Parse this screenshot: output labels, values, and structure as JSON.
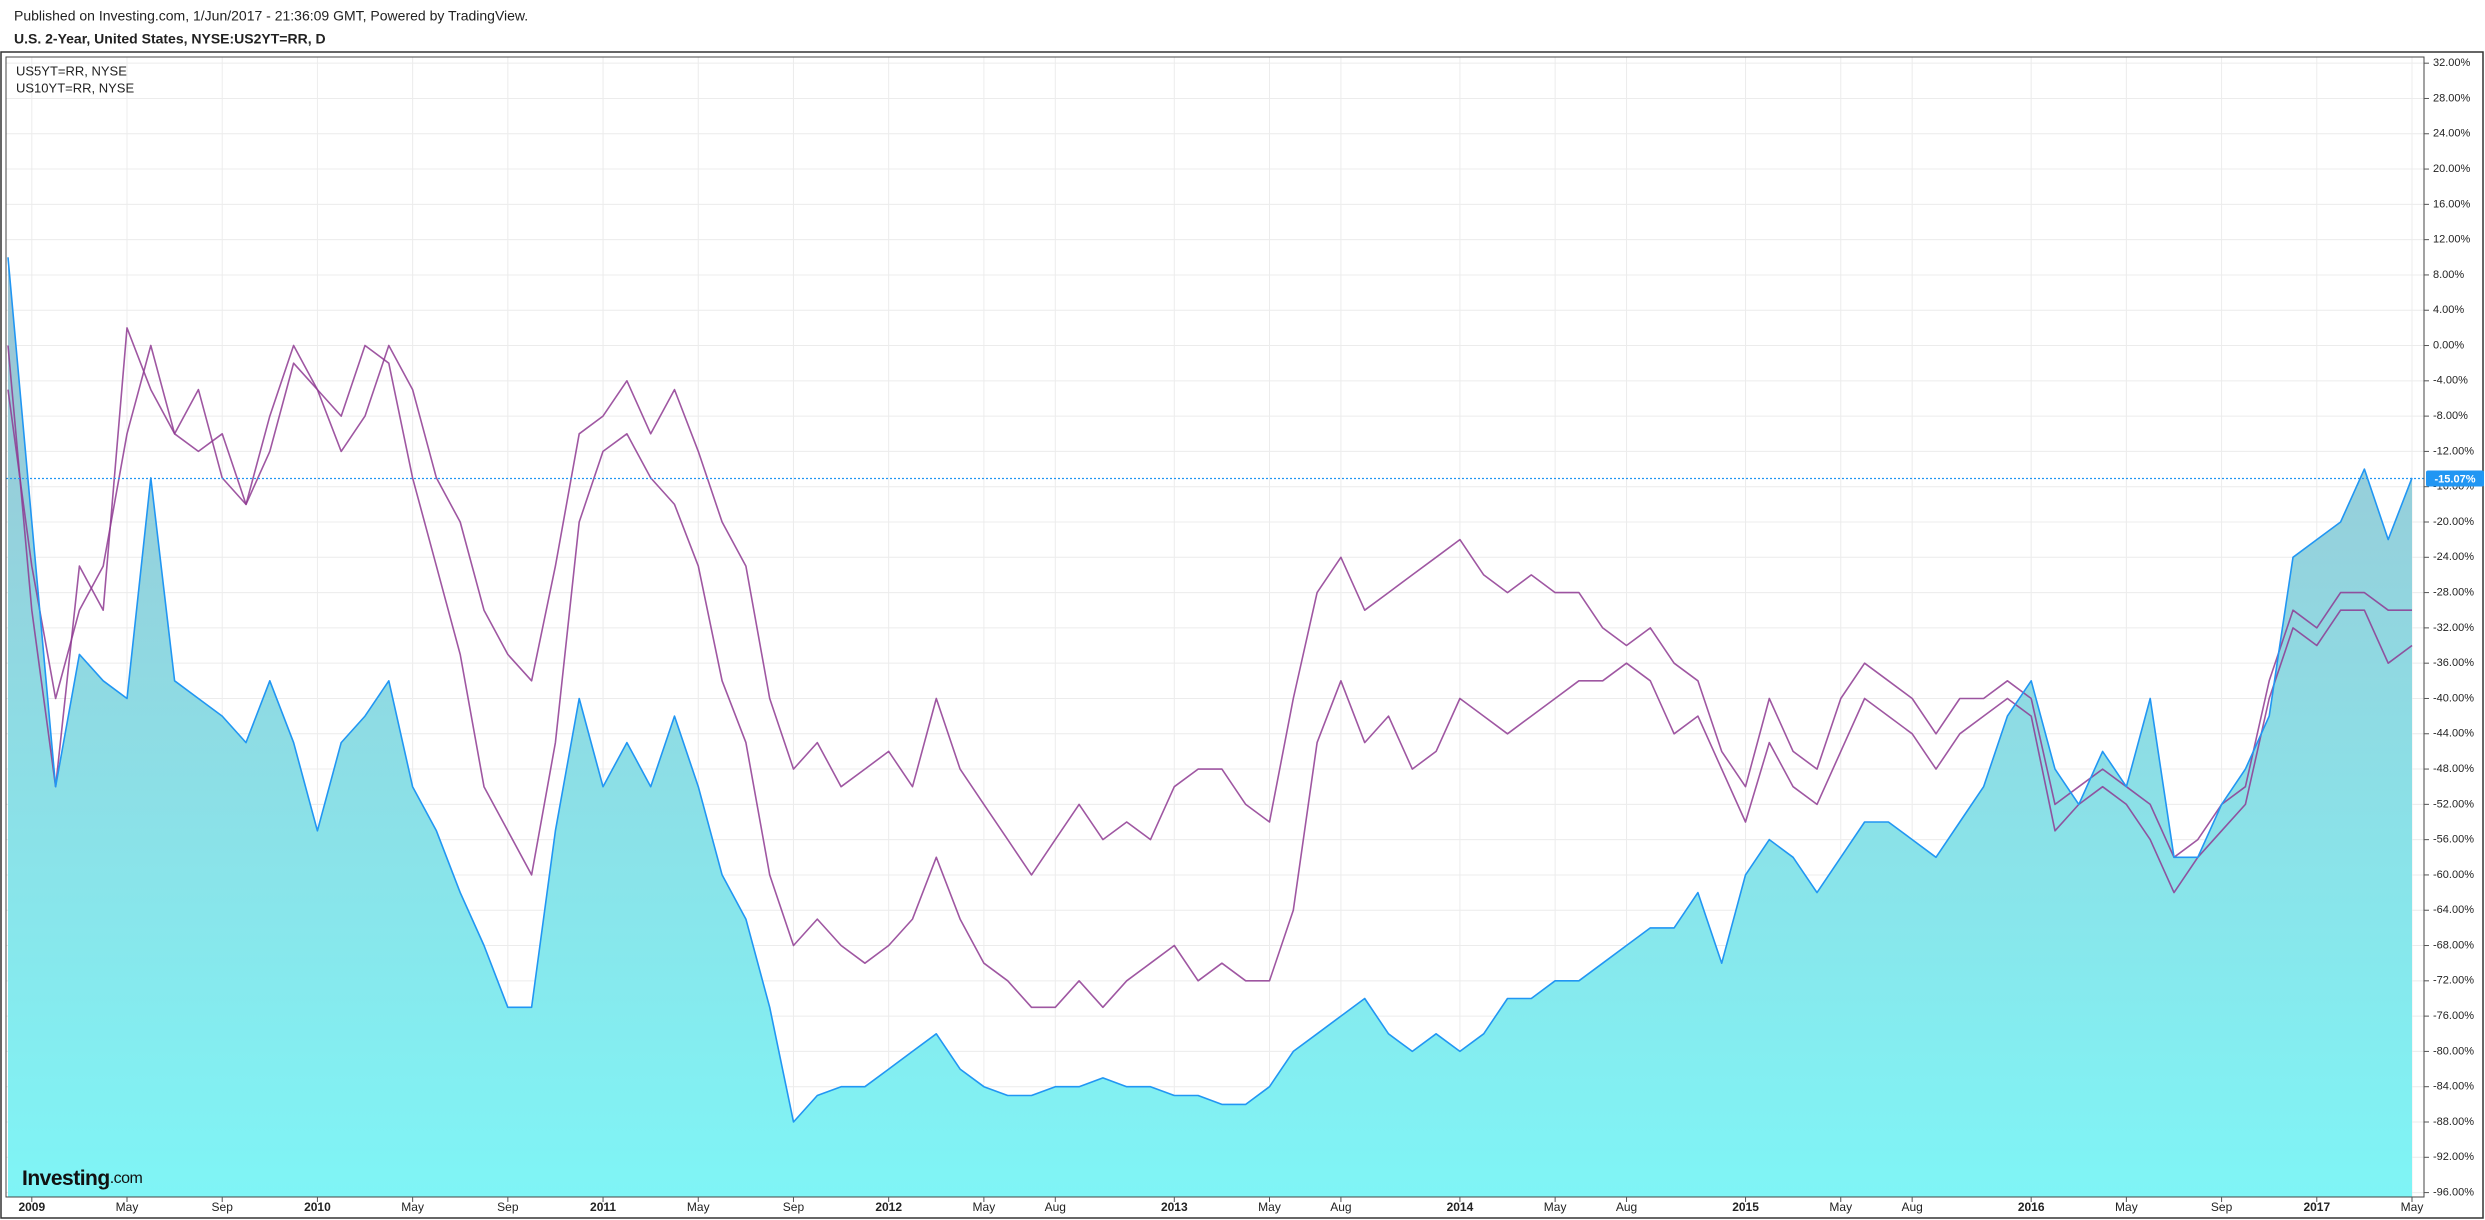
{
  "chart_data": {
    "type": "area",
    "published": "Published on Investing.com, 1/Jun/2017 - 21:36:09 GMT, Powered by TradingView.",
    "title": "U.S. 2-Year, United States, NYSE:US2YT=RR, D",
    "logo": {
      "main": "Investing",
      "suffix": ".com"
    },
    "grid": true,
    "legend": "top-left",
    "area_gradient": [
      "#9dc3d2",
      "#7ff5f6"
    ],
    "categories": [
      null,
      "2009",
      null,
      null,
      null,
      "May",
      null,
      null,
      null,
      "Sep",
      null,
      null,
      null,
      "2010",
      null,
      null,
      null,
      "May",
      null,
      null,
      null,
      "Sep",
      null,
      null,
      null,
      "2011",
      null,
      null,
      null,
      "May",
      null,
      null,
      null,
      "Sep",
      null,
      null,
      null,
      "2012",
      null,
      null,
      null,
      "May",
      null,
      null,
      "Aug",
      null,
      null,
      null,
      null,
      "2013",
      null,
      null,
      null,
      "May",
      null,
      null,
      "Aug",
      null,
      null,
      null,
      null,
      "2014",
      null,
      null,
      null,
      "May",
      null,
      null,
      "Aug",
      null,
      null,
      null,
      null,
      "2015",
      null,
      null,
      null,
      "May",
      null,
      null,
      "Aug",
      null,
      null,
      null,
      null,
      "2016",
      null,
      null,
      null,
      "May",
      null,
      null,
      null,
      "Sep",
      null,
      null,
      null,
      "2017",
      null,
      null,
      null,
      "May"
    ],
    "series": [
      {
        "color": "#2196f3",
        "values": [
          10,
          -20,
          -50,
          -35,
          -38,
          -40,
          -15,
          -38,
          -40,
          -42,
          -45,
          -38,
          -45,
          -55,
          -45,
          -42,
          -38,
          -50,
          -55,
          -62,
          -68,
          -75,
          -75,
          -55,
          -40,
          -50,
          -45,
          -50,
          -42,
          -50,
          -60,
          -65,
          -75,
          -88,
          -85,
          -84,
          -84,
          -82,
          -80,
          -78,
          -82,
          -84,
          -85,
          -85,
          -84,
          -84,
          -83,
          -84,
          -84,
          -85,
          -85,
          -86,
          -86,
          -84,
          -80,
          -78,
          -76,
          -74,
          -78,
          -80,
          -78,
          -80,
          -78,
          -74,
          -74,
          -72,
          -72,
          -70,
          -68,
          -66,
          -66,
          -62,
          -70,
          -60,
          -56,
          -58,
          -62,
          -58,
          -54,
          -54,
          -56,
          -58,
          -54,
          -50,
          -42,
          -38,
          -48,
          -52,
          -46,
          -50,
          -40,
          -58,
          -58,
          -52,
          -48,
          -42,
          -24,
          -22,
          -20,
          -14,
          -22,
          -15
        ]
      },
      {
        "name": "US5YT=RR, NYSE",
        "color": "#8e3a92",
        "values": [
          0,
          -30,
          -50,
          -25,
          -30,
          2,
          -5,
          -10,
          -5,
          -15,
          -18,
          -8,
          0,
          -5,
          -8,
          0,
          -2,
          -15,
          -25,
          -35,
          -50,
          -55,
          -60,
          -45,
          -20,
          -12,
          -10,
          -15,
          -18,
          -25,
          -38,
          -45,
          -60,
          -68,
          -65,
          -68,
          -70,
          -68,
          -65,
          -58,
          -65,
          -70,
          -72,
          -75,
          -75,
          -72,
          -75,
          -72,
          -70,
          -68,
          -72,
          -70,
          -72,
          -72,
          -64,
          -45,
          -38,
          -45,
          -42,
          -48,
          -46,
          -40,
          -42,
          -44,
          -42,
          -40,
          -38,
          -38,
          -36,
          -38,
          -44,
          -42,
          -48,
          -54,
          -45,
          -50,
          -52,
          -46,
          -40,
          -42,
          -44,
          -48,
          -44,
          -42,
          -40,
          -42,
          -55,
          -52,
          -50,
          -52,
          -56,
          -62,
          -58,
          -55,
          -52,
          -40,
          -32,
          -34,
          -30,
          -30,
          -36,
          -34
        ]
      },
      {
        "name": "US10YT=RR, NYSE",
        "color": "#8e3a92",
        "values": [
          -5,
          -25,
          -40,
          -30,
          -25,
          -10,
          0,
          -10,
          -12,
          -10,
          -18,
          -12,
          -2,
          -5,
          -12,
          -8,
          0,
          -5,
          -15,
          -20,
          -30,
          -35,
          -38,
          -25,
          -10,
          -8,
          -4,
          -10,
          -5,
          -12,
          -20,
          -25,
          -40,
          -48,
          -45,
          -50,
          -48,
          -46,
          -50,
          -40,
          -48,
          -52,
          -56,
          -60,
          -56,
          -52,
          -56,
          -54,
          -56,
          -50,
          -48,
          -48,
          -52,
          -54,
          -40,
          -28,
          -24,
          -30,
          -28,
          -26,
          -24,
          -22,
          -26,
          -28,
          -26,
          -28,
          -28,
          -32,
          -34,
          -32,
          -36,
          -38,
          -46,
          -50,
          -40,
          -46,
          -48,
          -40,
          -36,
          -38,
          -40,
          -44,
          -40,
          -40,
          -38,
          -40,
          -52,
          -50,
          -48,
          -50,
          -52,
          -58,
          -56,
          -52,
          -50,
          -38,
          -30,
          -32,
          -28,
          -28,
          -30,
          -30
        ]
      }
    ],
    "last_value": {
      "value": -15.07,
      "label": "-15.07%"
    },
    "ylim": [
      -96.5,
      32.7
    ],
    "yticks": [
      {
        "value": 32,
        "label": "32.00%"
      },
      {
        "value": 28,
        "label": "28.00%"
      },
      {
        "value": 24,
        "label": "24.00%"
      },
      {
        "value": 20,
        "label": "20.00%"
      },
      {
        "value": 16,
        "label": "16.00%"
      },
      {
        "value": 12,
        "label": "12.00%"
      },
      {
        "value": 8,
        "label": "8.00%"
      },
      {
        "value": 4,
        "label": "4.00%"
      },
      {
        "value": 0,
        "label": "0.00%"
      },
      {
        "value": -4,
        "label": "-4.00%"
      },
      {
        "value": -8,
        "label": "-8.00%"
      },
      {
        "value": -12,
        "label": "-12.00%"
      },
      {
        "value": -16,
        "label": "-16.00%"
      },
      {
        "value": -20,
        "label": "-20.00%"
      },
      {
        "value": -24,
        "label": "-24.00%"
      },
      {
        "value": -28,
        "label": "-28.00%"
      },
      {
        "value": -32,
        "label": "-32.00%"
      },
      {
        "value": -36,
        "label": "-36.00%"
      },
      {
        "value": -40,
        "label": "-40.00%"
      },
      {
        "value": -44,
        "label": "-44.00%"
      },
      {
        "value": -48,
        "label": "-48.00%"
      },
      {
        "value": -52,
        "label": "-52.00%"
      },
      {
        "value": -56,
        "label": "-56.00%"
      },
      {
        "value": -60,
        "label": "-60.00%"
      },
      {
        "value": -64,
        "label": "-64.00%"
      },
      {
        "value": -68,
        "label": "-68.00%"
      },
      {
        "value": -72,
        "label": "-72.00%"
      },
      {
        "value": -76,
        "label": "-76.00%"
      },
      {
        "value": -80,
        "label": "-80.00%"
      },
      {
        "value": -84,
        "label": "-84.00%"
      },
      {
        "value": -88,
        "label": "-88.00%"
      },
      {
        "value": -92,
        "label": "-92.00%"
      },
      {
        "value": -96,
        "label": "-96.00%"
      }
    ]
  }
}
